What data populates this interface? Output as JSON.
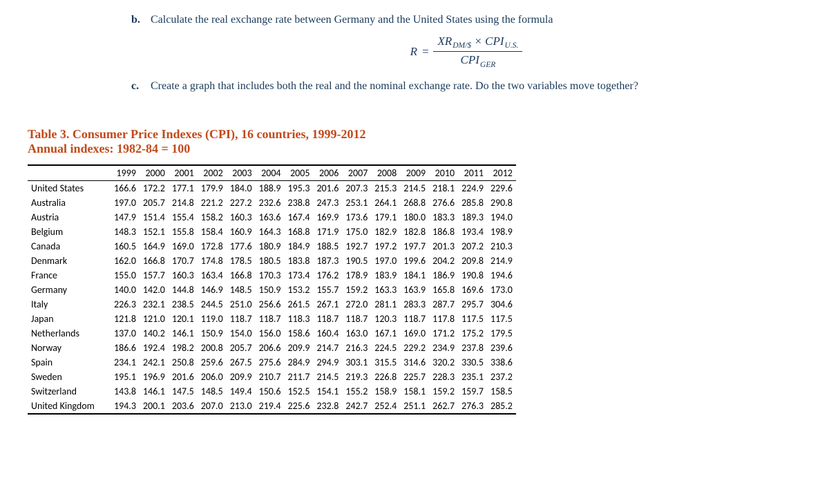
{
  "problems": [
    {
      "marker": "b.",
      "text": "Calculate the real exchange rate between Germany and the United States using the formula"
    },
    {
      "marker": "c.",
      "text": "Create a graph that includes both the real and the nominal exchange rate. Do the two variables move together?"
    }
  ],
  "formula": {
    "R": "R",
    "numer_a": "XR",
    "numer_a_sub": "DM/$",
    "times": "×",
    "numer_b": "CPI",
    "numer_b_sub": "U.S.",
    "denom": "CPI",
    "denom_sub": "GER"
  },
  "table": {
    "title": "Table 3. Consumer Price Indexes (CPI), 16 countries, 1999-2012",
    "subtitle": "Annual indexes: 1982-84 = 100",
    "years": [
      "1999",
      "2000",
      "2001",
      "2002",
      "2003",
      "2004",
      "2005",
      "2006",
      "2007",
      "2008",
      "2009",
      "2010",
      "2011",
      "2012"
    ],
    "rows": [
      {
        "country": "United States",
        "v": [
          "166.6",
          "172.2",
          "177.1",
          "179.9",
          "184.0",
          "188.9",
          "195.3",
          "201.6",
          "207.3",
          "215.3",
          "214.5",
          "218.1",
          "224.9",
          "229.6"
        ]
      },
      {
        "country": "Australia",
        "v": [
          "197.0",
          "205.7",
          "214.8",
          "221.2",
          "227.2",
          "232.6",
          "238.8",
          "247.3",
          "253.1",
          "264.1",
          "268.8",
          "276.6",
          "285.8",
          "290.8"
        ]
      },
      {
        "country": "Austria",
        "v": [
          "147.9",
          "151.4",
          "155.4",
          "158.2",
          "160.3",
          "163.6",
          "167.4",
          "169.9",
          "173.6",
          "179.1",
          "180.0",
          "183.3",
          "189.3",
          "194.0"
        ]
      },
      {
        "country": "Belgium",
        "v": [
          "148.3",
          "152.1",
          "155.8",
          "158.4",
          "160.9",
          "164.3",
          "168.8",
          "171.9",
          "175.0",
          "182.9",
          "182.8",
          "186.8",
          "193.4",
          "198.9"
        ]
      },
      {
        "country": "Canada",
        "v": [
          "160.5",
          "164.9",
          "169.0",
          "172.8",
          "177.6",
          "180.9",
          "184.9",
          "188.5",
          "192.7",
          "197.2",
          "197.7",
          "201.3",
          "207.2",
          "210.3"
        ]
      },
      {
        "country": "Denmark",
        "v": [
          "162.0",
          "166.8",
          "170.7",
          "174.8",
          "178.5",
          "180.5",
          "183.8",
          "187.3",
          "190.5",
          "197.0",
          "199.6",
          "204.2",
          "209.8",
          "214.9"
        ]
      },
      {
        "country": "France",
        "v": [
          "155.0",
          "157.7",
          "160.3",
          "163.4",
          "166.8",
          "170.3",
          "173.4",
          "176.2",
          "178.9",
          "183.9",
          "184.1",
          "186.9",
          "190.8",
          "194.6"
        ]
      },
      {
        "country": "Germany",
        "v": [
          "140.0",
          "142.0",
          "144.8",
          "146.9",
          "148.5",
          "150.9",
          "153.2",
          "155.7",
          "159.2",
          "163.3",
          "163.9",
          "165.8",
          "169.6",
          "173.0"
        ]
      },
      {
        "country": "Italy",
        "v": [
          "226.3",
          "232.1",
          "238.5",
          "244.5",
          "251.0",
          "256.6",
          "261.5",
          "267.1",
          "272.0",
          "281.1",
          "283.3",
          "287.7",
          "295.7",
          "304.6"
        ]
      },
      {
        "country": "Japan",
        "v": [
          "121.8",
          "121.0",
          "120.1",
          "119.0",
          "118.7",
          "118.7",
          "118.3",
          "118.7",
          "118.7",
          "120.3",
          "118.7",
          "117.8",
          "117.5",
          "117.5"
        ]
      },
      {
        "country": "Netherlands",
        "v": [
          "137.0",
          "140.2",
          "146.1",
          "150.9",
          "154.0",
          "156.0",
          "158.6",
          "160.4",
          "163.0",
          "167.1",
          "169.0",
          "171.2",
          "175.2",
          "179.5"
        ]
      },
      {
        "country": "Norway",
        "v": [
          "186.6",
          "192.4",
          "198.2",
          "200.8",
          "205.7",
          "206.6",
          "209.9",
          "214.7",
          "216.3",
          "224.5",
          "229.2",
          "234.9",
          "237.8",
          "239.6"
        ]
      },
      {
        "country": "Spain",
        "v": [
          "234.1",
          "242.1",
          "250.8",
          "259.6",
          "267.5",
          "275.6",
          "284.9",
          "294.9",
          "303.1",
          "315.5",
          "314.6",
          "320.2",
          "330.5",
          "338.6"
        ]
      },
      {
        "country": "Sweden",
        "v": [
          "195.1",
          "196.9",
          "201.6",
          "206.0",
          "209.9",
          "210.7",
          "211.7",
          "214.5",
          "219.3",
          "226.8",
          "225.7",
          "228.3",
          "235.1",
          "237.2"
        ]
      },
      {
        "country": "Switzerland",
        "v": [
          "143.8",
          "146.1",
          "147.5",
          "148.5",
          "149.4",
          "150.6",
          "152.5",
          "154.1",
          "155.2",
          "158.9",
          "158.1",
          "159.2",
          "159.7",
          "158.5"
        ]
      },
      {
        "country": "United Kingdom",
        "v": [
          "194.3",
          "200.1",
          "203.6",
          "207.0",
          "213.0",
          "219.4",
          "225.6",
          "232.8",
          "242.7",
          "252.4",
          "251.1",
          "262.7",
          "276.3",
          "285.2"
        ]
      }
    ]
  },
  "colors": {
    "heading": "#c14a1a",
    "body_text": "#1a3a5a",
    "background": "#ffffff"
  }
}
